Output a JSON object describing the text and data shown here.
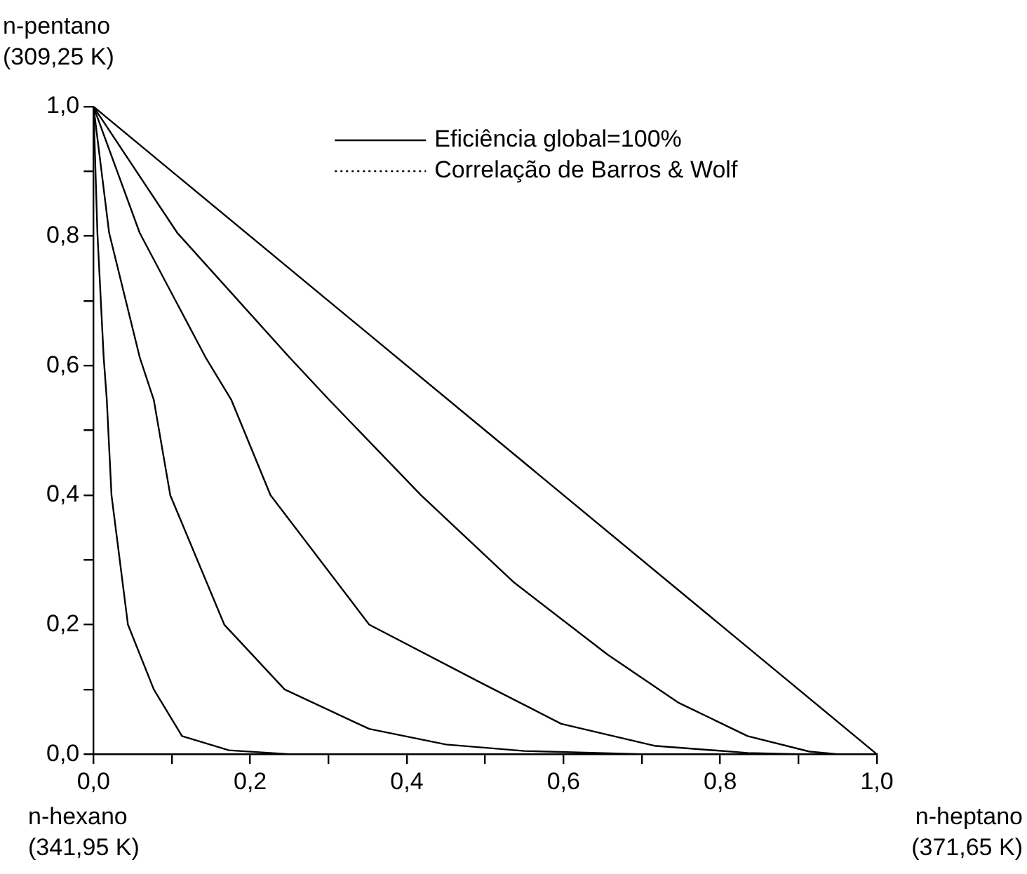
{
  "chart_data": {
    "type": "line",
    "marker": "none",
    "grid": false,
    "legend": "top right",
    "xlim": [
      0,
      1
    ],
    "ylim": [
      0,
      1
    ],
    "xticks": [
      {
        "value": 0,
        "label": "0,0"
      },
      {
        "value": 0.1,
        "label": null
      },
      {
        "value": 0.2,
        "label": "0,2"
      },
      {
        "value": 0.3,
        "label": null
      },
      {
        "value": 0.4,
        "label": "0,4"
      },
      {
        "value": 0.5,
        "label": null
      },
      {
        "value": 0.6,
        "label": "0,6"
      },
      {
        "value": 0.7,
        "label": null
      },
      {
        "value": 0.8,
        "label": "0,8"
      },
      {
        "value": 0.9,
        "label": null
      },
      {
        "value": 1,
        "label": "1,0"
      }
    ],
    "yticks": [
      {
        "value": 0,
        "label": "0,0"
      },
      {
        "value": 0.1,
        "label": null
      },
      {
        "value": 0.2,
        "label": "0,2"
      },
      {
        "value": 0.3,
        "label": null
      },
      {
        "value": 0.4,
        "label": "0,4"
      },
      {
        "value": 0.5,
        "label": null
      },
      {
        "value": 0.6,
        "label": "0,6"
      },
      {
        "value": 0.7,
        "label": null
      },
      {
        "value": 0.8,
        "label": "0,8"
      },
      {
        "value": 0.9,
        "label": null
      },
      {
        "value": 1,
        "label": "1,0"
      }
    ],
    "annotations": [
      "n-pentano\n(309,25 K)",
      "n-hexano\n(341,95 K)",
      "n-heptano\n(371,65 K)"
    ],
    "series": [
      {
        "name": "Eficiência global=100%",
        "color": "#000000",
        "line_style": "solid",
        "x": [
          0,
          1
        ],
        "values": [
          1,
          0
        ]
      },
      {
        "color": "#000000",
        "line_style": "solid",
        "x": [
          0,
          0.107,
          0.25,
          0.301,
          0.418,
          0.537,
          0.656,
          0.746,
          0.835,
          0.914,
          0.95
        ],
        "values": [
          1,
          0.805,
          0.613,
          0.547,
          0.4,
          0.265,
          0.154,
          0.08,
          0.028,
          0.004,
          0
        ]
      },
      {
        "color": "#000000",
        "line_style": "solid",
        "x": [
          0,
          0.059,
          0.143,
          0.176,
          0.226,
          0.352,
          0.495,
          0.597,
          0.716,
          0.835,
          0.9
        ],
        "values": [
          1,
          0.805,
          0.613,
          0.547,
          0.4,
          0.2,
          0.11,
          0.047,
          0.013,
          0.002,
          0
        ]
      },
      {
        "color": "#000000",
        "line_style": "solid",
        "x": [
          0,
          0.02,
          0.059,
          0.077,
          0.098,
          0.167,
          0.244,
          0.352,
          0.45,
          0.55,
          0.7
        ],
        "values": [
          1,
          0.805,
          0.613,
          0.547,
          0.4,
          0.2,
          0.1,
          0.039,
          0.015,
          0.005,
          0
        ]
      },
      {
        "color": "#000000",
        "line_style": "solid",
        "x": [
          0,
          0.005,
          0.013,
          0.017,
          0.023,
          0.044,
          0.077,
          0.113,
          0.173,
          0.25
        ],
        "values": [
          1,
          0.805,
          0.613,
          0.547,
          0.4,
          0.2,
          0.1,
          0.028,
          0.006,
          0
        ]
      },
      {
        "name": "Correlação de Barros & Wolf",
        "color": "#000000",
        "line_style": "dotted",
        "values": [
          null
        ]
      }
    ]
  }
}
